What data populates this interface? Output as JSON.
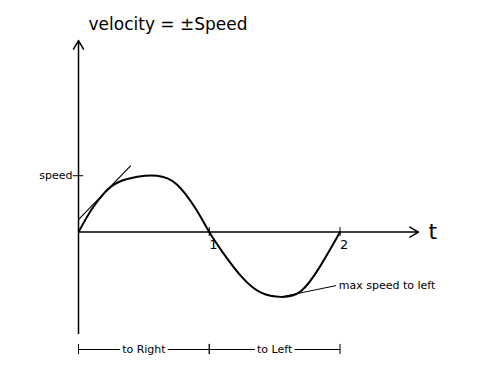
{
  "chart_data": {
    "type": "line",
    "title": "velocity = ±Speed",
    "xlabel": "t",
    "x": [
      0,
      0.1,
      0.2,
      0.3,
      0.45,
      0.6,
      0.75,
      0.9,
      1,
      1.1,
      1.25,
      1.4,
      1.55,
      1.7,
      1.85,
      2
    ],
    "values": [
      0,
      0.4,
      0.7,
      0.88,
      0.98,
      1.0,
      0.85,
      0.4,
      0,
      -0.35,
      -0.8,
      -1.08,
      -1.15,
      -1.05,
      -0.6,
      0
    ],
    "color": "#000000",
    "xlim": [
      0,
      2.6
    ],
    "ylim": [
      -1.8,
      3.4
    ],
    "xticks": [
      1,
      2
    ],
    "yticks": [],
    "tick_labels": "x",
    "annotations": [
      {
        "text": "speed",
        "x": 0,
        "y": 1.0
      },
      {
        "text": "max speed to left",
        "x": 1.55,
        "y": -1.15
      }
    ],
    "segments": [
      {
        "label": "to Right",
        "from": 0,
        "to": 1
      },
      {
        "label": "to Left",
        "from": 1,
        "to": 2
      }
    ]
  }
}
